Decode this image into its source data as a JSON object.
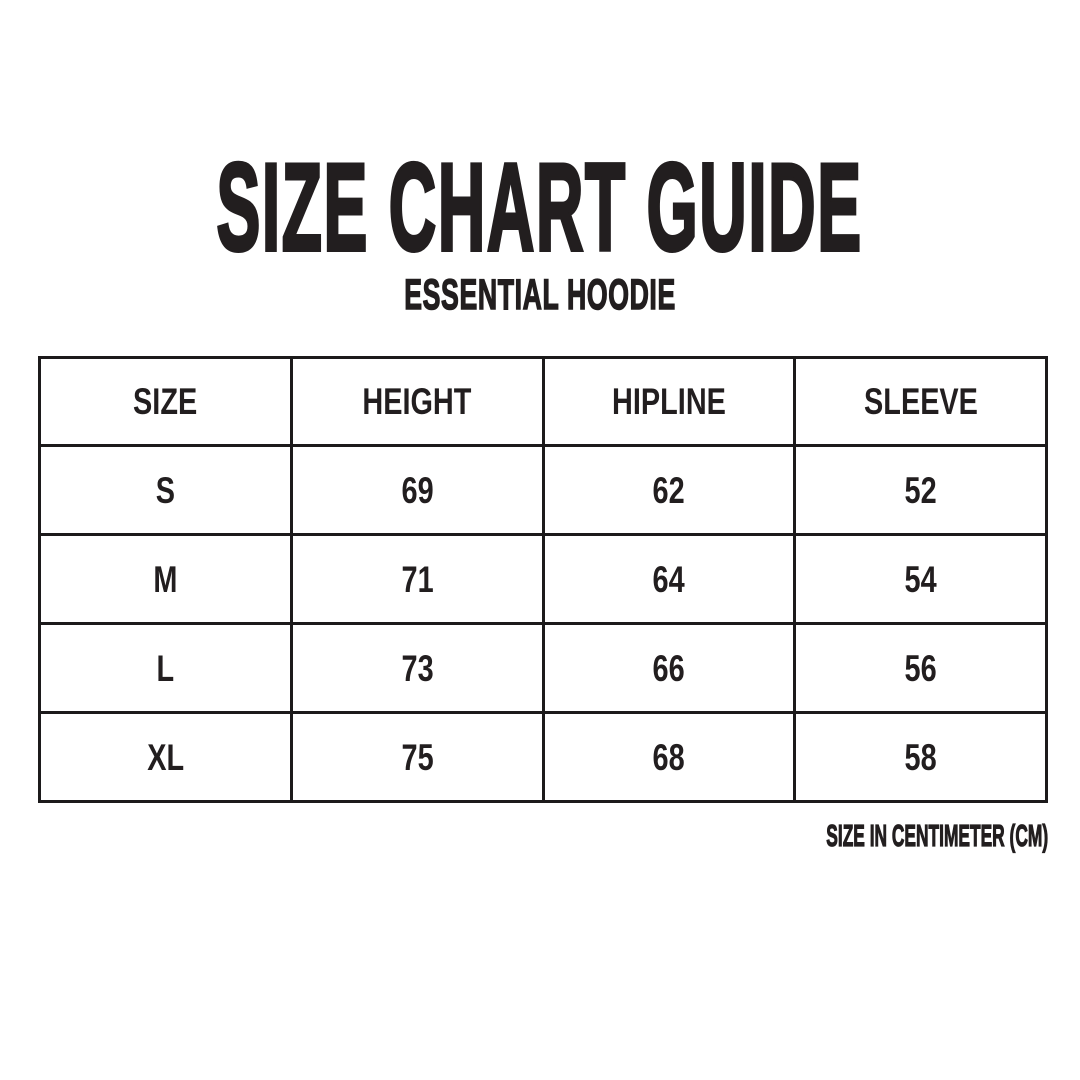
{
  "header": {
    "title": "SIZE CHART GUIDE",
    "subtitle": "ESSENTIAL HOODIE"
  },
  "footer": {
    "unit_note": "SIZE IN CENTIMETER (CM)"
  },
  "theme": {
    "text_color": "#221e1f",
    "border_color": "#1c1a1b",
    "background": "#ffffff"
  },
  "chart_data": {
    "type": "table",
    "title": "SIZE CHART GUIDE",
    "subtitle": "ESSENTIAL HOODIE",
    "unit": "cm",
    "unit_note": "SIZE IN CENTIMETER (CM)",
    "columns": [
      "SIZE",
      "HEIGHT",
      "HIPLINE",
      "SLEEVE"
    ],
    "rows": [
      [
        "S",
        "69",
        "62",
        "52"
      ],
      [
        "M",
        "71",
        "64",
        "54"
      ],
      [
        "L",
        "73",
        "66",
        "56"
      ],
      [
        "XL",
        "75",
        "68",
        "58"
      ]
    ]
  }
}
